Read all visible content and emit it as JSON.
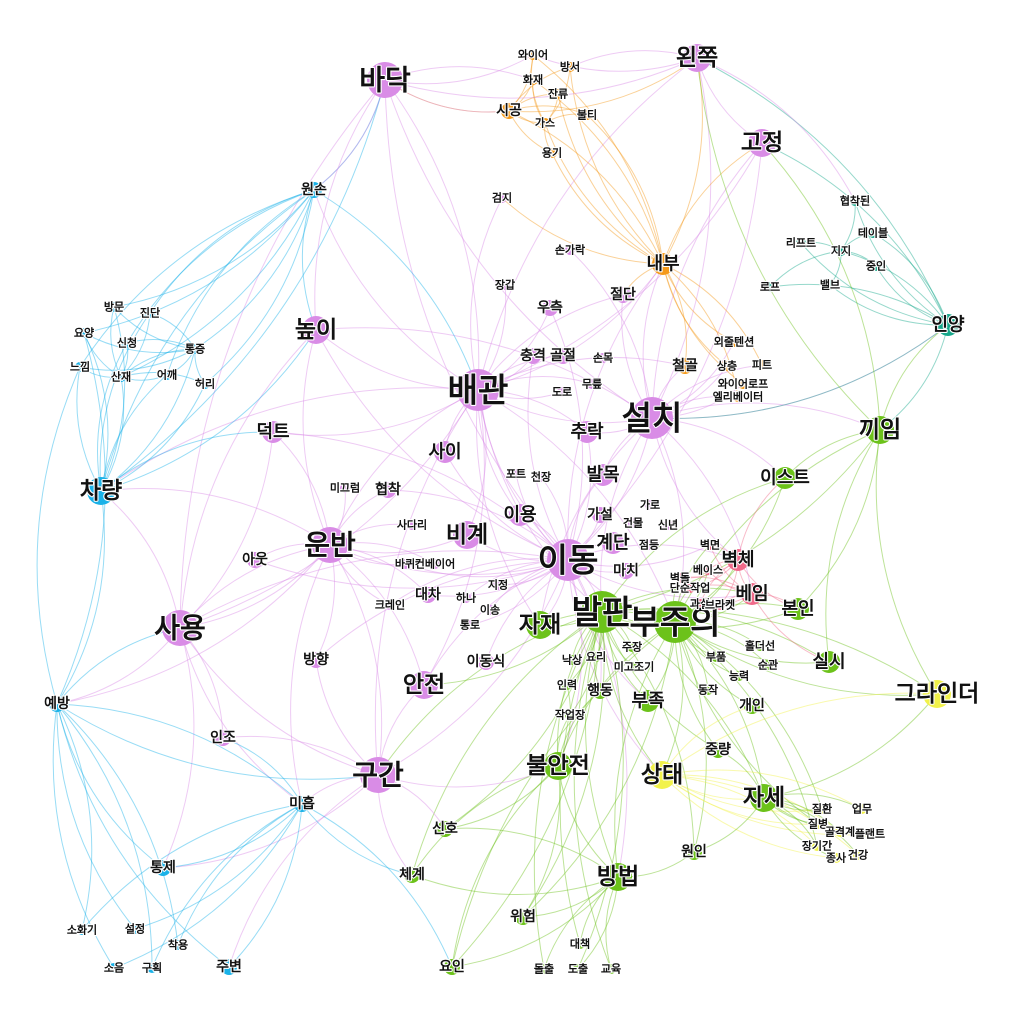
{
  "colors": {
    "purple": "#d98ce6",
    "green": "#6cc21a",
    "blue": "#1ab2e8",
    "orange": "#f59a1a",
    "teal": "#17a88b",
    "red": "#f06a8a",
    "yellow": "#f2f24a"
  },
  "nodes": [
    {
      "id": "n1",
      "label": "바닥",
      "group": "purple",
      "size": "xl"
    },
    {
      "id": "n2",
      "label": "왼쪽",
      "group": "purple",
      "size": "l"
    },
    {
      "id": "n3",
      "label": "고정",
      "group": "purple",
      "size": "l"
    },
    {
      "id": "n4",
      "label": "높이",
      "group": "purple",
      "size": "l"
    },
    {
      "id": "n5",
      "label": "배관",
      "group": "purple",
      "size": "xxl"
    },
    {
      "id": "n6",
      "label": "설치",
      "group": "purple",
      "size": "xxl"
    },
    {
      "id": "n7",
      "label": "덕트",
      "group": "purple",
      "size": "m"
    },
    {
      "id": "n8",
      "label": "사이",
      "group": "purple",
      "size": "m"
    },
    {
      "id": "n9",
      "label": "추락",
      "group": "purple",
      "size": "m"
    },
    {
      "id": "n10",
      "label": "발목",
      "group": "purple",
      "size": "m"
    },
    {
      "id": "n11",
      "label": "운반",
      "group": "purple",
      "size": "xl"
    },
    {
      "id": "n12",
      "label": "비계",
      "group": "purple",
      "size": "l"
    },
    {
      "id": "n13",
      "label": "이용",
      "group": "purple",
      "size": "m"
    },
    {
      "id": "n14",
      "label": "이동",
      "group": "purple",
      "size": "xxl"
    },
    {
      "id": "n15",
      "label": "사용",
      "group": "purple",
      "size": "xl"
    },
    {
      "id": "n16",
      "label": "구간",
      "group": "purple",
      "size": "xl"
    },
    {
      "id": "n17",
      "label": "안전",
      "group": "purple",
      "size": "l"
    },
    {
      "id": "n18",
      "label": "방향",
      "group": "purple",
      "size": "s"
    },
    {
      "id": "n19",
      "label": "아웃",
      "group": "purple",
      "size": "s"
    },
    {
      "id": "n20",
      "label": "인조",
      "group": "purple",
      "size": "s"
    },
    {
      "id": "n21",
      "label": "협착",
      "group": "purple",
      "size": "s"
    },
    {
      "id": "n22",
      "label": "미끄럼",
      "group": "purple",
      "size": "xs"
    },
    {
      "id": "n23",
      "label": "사다리",
      "group": "purple",
      "size": "xs"
    },
    {
      "id": "n24",
      "label": "바퀴",
      "group": "purple",
      "size": "xs"
    },
    {
      "id": "n25",
      "label": "컨베이어",
      "group": "purple",
      "size": "xs"
    },
    {
      "id": "n26",
      "label": "크레인",
      "group": "purple",
      "size": "xs"
    },
    {
      "id": "n27",
      "label": "대차",
      "group": "purple",
      "size": "s"
    },
    {
      "id": "n28",
      "label": "하나",
      "group": "purple",
      "size": "xs"
    },
    {
      "id": "n29",
      "label": "지정",
      "group": "purple",
      "size": "xs"
    },
    {
      "id": "n30",
      "label": "이송",
      "group": "purple",
      "size": "xs"
    },
    {
      "id": "n31",
      "label": "통로",
      "group": "purple",
      "size": "xs"
    },
    {
      "id": "n32",
      "label": "이동식",
      "group": "purple",
      "size": "s"
    },
    {
      "id": "n33",
      "label": "포트",
      "group": "purple",
      "size": "xs"
    },
    {
      "id": "n34",
      "label": "천장",
      "group": "purple",
      "size": "xs"
    },
    {
      "id": "n35",
      "label": "가로",
      "group": "purple",
      "size": "xs"
    },
    {
      "id": "n36",
      "label": "가설",
      "group": "purple",
      "size": "s"
    },
    {
      "id": "n37",
      "label": "건물",
      "group": "purple",
      "size": "xs"
    },
    {
      "id": "n38",
      "label": "신년",
      "group": "purple",
      "size": "xs"
    },
    {
      "id": "n39",
      "label": "계단",
      "group": "purple",
      "size": "m"
    },
    {
      "id": "n40",
      "label": "점등",
      "group": "purple",
      "size": "xs"
    },
    {
      "id": "n41",
      "label": "마치",
      "group": "purple",
      "size": "s"
    },
    {
      "id": "n42",
      "label": "충격",
      "group": "purple",
      "size": "s"
    },
    {
      "id": "n43",
      "label": "골절",
      "group": "purple",
      "size": "s"
    },
    {
      "id": "n44",
      "label": "손목",
      "group": "purple",
      "size": "xs"
    },
    {
      "id": "n45",
      "label": "도로",
      "group": "purple",
      "size": "xs"
    },
    {
      "id": "n46",
      "label": "무릎",
      "group": "purple",
      "size": "xs"
    },
    {
      "id": "n47",
      "label": "우측",
      "group": "purple",
      "size": "s"
    },
    {
      "id": "n48",
      "label": "절단",
      "group": "purple",
      "size": "s"
    },
    {
      "id": "n49",
      "label": "손가락",
      "group": "purple",
      "size": "xs"
    },
    {
      "id": "n50",
      "label": "장갑",
      "group": "purple",
      "size": "xs"
    },
    {
      "id": "n51",
      "label": "검지",
      "group": "purple",
      "size": "xs"
    },
    {
      "id": "n52",
      "label": "와이어",
      "group": "orange",
      "size": "xs"
    },
    {
      "id": "n53",
      "label": "방서",
      "group": "orange",
      "size": "xs"
    },
    {
      "id": "n54",
      "label": "화재",
      "group": "orange",
      "size": "xs"
    },
    {
      "id": "n55",
      "label": "잔류",
      "group": "orange",
      "size": "xs"
    },
    {
      "id": "n56",
      "label": "시공",
      "group": "orange",
      "size": "s"
    },
    {
      "id": "n57",
      "label": "가스",
      "group": "orange",
      "size": "xs"
    },
    {
      "id": "n58",
      "label": "불티",
      "group": "orange",
      "size": "xs"
    },
    {
      "id": "n59",
      "label": "용기",
      "group": "orange",
      "size": "xs"
    },
    {
      "id": "n60",
      "label": "내부",
      "group": "orange",
      "size": "m"
    },
    {
      "id": "n61",
      "label": "외줄텐션",
      "group": "orange",
      "size": "xs"
    },
    {
      "id": "n62",
      "label": "철골",
      "group": "orange",
      "size": "s"
    },
    {
      "id": "n63",
      "label": "상층",
      "group": "orange",
      "size": "xs"
    },
    {
      "id": "n64",
      "label": "피트",
      "group": "orange",
      "size": "xs"
    },
    {
      "id": "n65",
      "label": "와이어로프",
      "group": "orange",
      "size": "xs"
    },
    {
      "id": "n66",
      "label": "엘리베이터",
      "group": "orange",
      "size": "xs"
    },
    {
      "id": "n67",
      "label": "협착된",
      "group": "teal",
      "size": "xs"
    },
    {
      "id": "n68",
      "label": "테이블",
      "group": "teal",
      "size": "xs"
    },
    {
      "id": "n69",
      "label": "리프트",
      "group": "teal",
      "size": "xs"
    },
    {
      "id": "n70",
      "label": "지지",
      "group": "teal",
      "size": "xs"
    },
    {
      "id": "n71",
      "label": "중인",
      "group": "teal",
      "size": "xs"
    },
    {
      "id": "n72",
      "label": "로프",
      "group": "teal",
      "size": "xs"
    },
    {
      "id": "n73",
      "label": "밸브",
      "group": "teal",
      "size": "xs"
    },
    {
      "id": "n74",
      "label": "인양",
      "group": "teal",
      "size": "m"
    },
    {
      "id": "n75",
      "label": "끼임",
      "group": "green",
      "size": "l"
    },
    {
      "id": "n76",
      "label": "이스트",
      "group": "green",
      "size": "m"
    },
    {
      "id": "n77",
      "label": "본인",
      "group": "green",
      "size": "m"
    },
    {
      "id": "n78",
      "label": "실시",
      "group": "green",
      "size": "m"
    },
    {
      "id": "n79",
      "label": "발판",
      "group": "green",
      "size": "xxl"
    },
    {
      "id": "n80",
      "label": "부주의",
      "group": "green",
      "size": "xxl"
    },
    {
      "id": "n81",
      "label": "자재",
      "group": "green",
      "size": "l"
    },
    {
      "id": "n82",
      "label": "홀더선",
      "group": "green",
      "size": "xs"
    },
    {
      "id": "n83",
      "label": "부품",
      "group": "green",
      "size": "xs"
    },
    {
      "id": "n84",
      "label": "순관",
      "group": "green",
      "size": "xs"
    },
    {
      "id": "n85",
      "label": "능력",
      "group": "green",
      "size": "xs"
    },
    {
      "id": "n86",
      "label": "동작",
      "group": "green",
      "size": "xs"
    },
    {
      "id": "n87",
      "label": "개인",
      "group": "green",
      "size": "s"
    },
    {
      "id": "n88",
      "label": "부족",
      "group": "green",
      "size": "m"
    },
    {
      "id": "n89",
      "label": "주장",
      "group": "green",
      "size": "xs"
    },
    {
      "id": "n90",
      "label": "낙상",
      "group": "green",
      "size": "xs"
    },
    {
      "id": "n91",
      "label": "요리",
      "group": "green",
      "size": "xs"
    },
    {
      "id": "n92",
      "label": "미고조기",
      "group": "green",
      "size": "xs"
    },
    {
      "id": "n93",
      "label": "인력",
      "group": "green",
      "size": "xs"
    },
    {
      "id": "n94",
      "label": "행동",
      "group": "green",
      "size": "s"
    },
    {
      "id": "n95",
      "label": "작업장",
      "group": "green",
      "size": "xs"
    },
    {
      "id": "n96",
      "label": "중량",
      "group": "green",
      "size": "s"
    },
    {
      "id": "n97",
      "label": "자세",
      "group": "green",
      "size": "l"
    },
    {
      "id": "n98",
      "label": "불안전",
      "group": "green",
      "size": "l"
    },
    {
      "id": "n99",
      "label": "신호",
      "group": "green",
      "size": "s"
    },
    {
      "id": "n100",
      "label": "체계",
      "group": "green",
      "size": "s"
    },
    {
      "id": "n101",
      "label": "원인",
      "group": "green",
      "size": "s"
    },
    {
      "id": "n102",
      "label": "방법",
      "group": "green",
      "size": "l"
    },
    {
      "id": "n103",
      "label": "위험",
      "group": "green",
      "size": "s"
    },
    {
      "id": "n104",
      "label": "대책",
      "group": "green",
      "size": "xs"
    },
    {
      "id": "n105",
      "label": "요인",
      "group": "green",
      "size": "s"
    },
    {
      "id": "n106",
      "label": "돌출",
      "group": "green",
      "size": "xs"
    },
    {
      "id": "n107",
      "label": "도출",
      "group": "green",
      "size": "xs"
    },
    {
      "id": "n108",
      "label": "교육",
      "group": "green",
      "size": "xs"
    },
    {
      "id": "n109",
      "label": "벽면",
      "group": "red",
      "size": "xs"
    },
    {
      "id": "n110",
      "label": "벽체",
      "group": "red",
      "size": "m"
    },
    {
      "id": "n111",
      "label": "벽돌",
      "group": "red",
      "size": "xs"
    },
    {
      "id": "n112",
      "label": "베이스",
      "group": "red",
      "size": "xs"
    },
    {
      "id": "n113",
      "label": "단순작업",
      "group": "red",
      "size": "xs"
    },
    {
      "id": "n114",
      "label": "과실",
      "group": "red",
      "size": "xs"
    },
    {
      "id": "n115",
      "label": "브라켓",
      "group": "red",
      "size": "xs"
    },
    {
      "id": "n116",
      "label": "베임",
      "group": "red",
      "size": "m"
    },
    {
      "id": "n117",
      "label": "상태",
      "group": "yellow",
      "size": "l"
    },
    {
      "id": "n118",
      "label": "그라인더",
      "group": "yellow",
      "size": "l"
    },
    {
      "id": "n119",
      "label": "질환",
      "group": "yellow",
      "size": "xs"
    },
    {
      "id": "n120",
      "label": "업무",
      "group": "yellow",
      "size": "xs"
    },
    {
      "id": "n121",
      "label": "질병",
      "group": "yellow",
      "size": "xs"
    },
    {
      "id": "n122",
      "label": "골격계",
      "group": "yellow",
      "size": "xs"
    },
    {
      "id": "n123",
      "label": "플랜트",
      "group": "yellow",
      "size": "xs"
    },
    {
      "id": "n124",
      "label": "장기간",
      "group": "yellow",
      "size": "xs"
    },
    {
      "id": "n125",
      "label": "종사",
      "group": "yellow",
      "size": "xs"
    },
    {
      "id": "n126",
      "label": "건강",
      "group": "yellow",
      "size": "xs"
    },
    {
      "id": "n127",
      "label": "원손",
      "group": "blue",
      "size": "s"
    },
    {
      "id": "n128",
      "label": "방문",
      "group": "blue",
      "size": "xs"
    },
    {
      "id": "n129",
      "label": "진단",
      "group": "blue",
      "size": "xs"
    },
    {
      "id": "n130",
      "label": "요양",
      "group": "blue",
      "size": "xs"
    },
    {
      "id": "n131",
      "label": "신청",
      "group": "blue",
      "size": "xs"
    },
    {
      "id": "n132",
      "label": "통증",
      "group": "blue",
      "size": "xs"
    },
    {
      "id": "n133",
      "label": "느낌",
      "group": "blue",
      "size": "xs"
    },
    {
      "id": "n134",
      "label": "산재",
      "group": "blue",
      "size": "xs"
    },
    {
      "id": "n135",
      "label": "어깨",
      "group": "blue",
      "size": "xs"
    },
    {
      "id": "n136",
      "label": "허리",
      "group": "blue",
      "size": "xs"
    },
    {
      "id": "n137",
      "label": "차량",
      "group": "blue",
      "size": "l"
    },
    {
      "id": "n138",
      "label": "예방",
      "group": "blue",
      "size": "s"
    },
    {
      "id": "n139",
      "label": "미흡",
      "group": "blue",
      "size": "s"
    },
    {
      "id": "n140",
      "label": "통제",
      "group": "blue",
      "size": "s"
    },
    {
      "id": "n141",
      "label": "소화기",
      "group": "blue",
      "size": "xs"
    },
    {
      "id": "n142",
      "label": "설정",
      "group": "blue",
      "size": "xs"
    },
    {
      "id": "n143",
      "label": "착용",
      "group": "blue",
      "size": "xs"
    },
    {
      "id": "n144",
      "label": "소음",
      "group": "blue",
      "size": "xs"
    },
    {
      "id": "n145",
      "label": "구획",
      "group": "blue",
      "size": "xs"
    },
    {
      "id": "n146",
      "label": "주변",
      "group": "blue",
      "size": "s"
    }
  ]
}
